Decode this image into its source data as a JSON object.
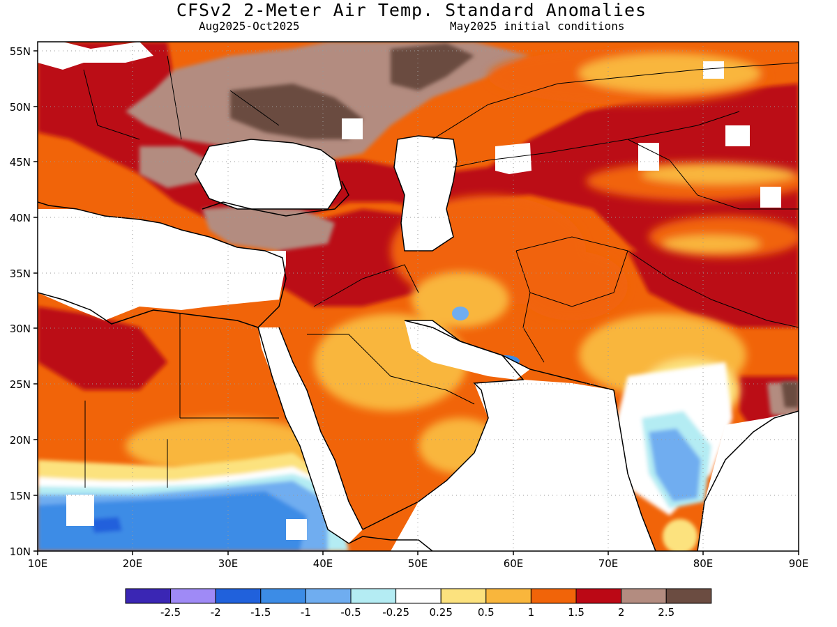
{
  "header": {
    "title": "CFSv2 2-Meter Air Temp. Standard Anomalies",
    "period": "Aug2025-Oct2025",
    "initial_conditions": "May2025 initial conditions"
  },
  "map": {
    "lon_range": [
      10,
      90
    ],
    "lat_range": [
      10,
      56
    ],
    "lat_labels": [
      "10N",
      "15N",
      "20N",
      "25N",
      "30N",
      "35N",
      "40N",
      "45N",
      "50N",
      "55N"
    ],
    "lon_labels": [
      "10E",
      "20E",
      "30E",
      "40E",
      "50E",
      "60E",
      "70E",
      "80E",
      "90E"
    ]
  },
  "legend": {
    "colors": [
      "#3a26b4",
      "#9f8af6",
      "#2061dc",
      "#3c8ce6",
      "#6fadf0",
      "#b4ecf3",
      "#ffffff",
      "#fce27e",
      "#f9b63c",
      "#f16409",
      "#bb0815",
      "#b38c80",
      "#6b4c41"
    ],
    "labels": [
      "-2.5",
      "-2",
      "-1.5",
      "-1",
      "-0.5",
      "-0.25",
      "0.25",
      "0.5",
      "1",
      "1.5",
      "2",
      "2.5"
    ]
  },
  "colors": {
    "land_mask": "#ffffff",
    "coastline": "#000000"
  }
}
